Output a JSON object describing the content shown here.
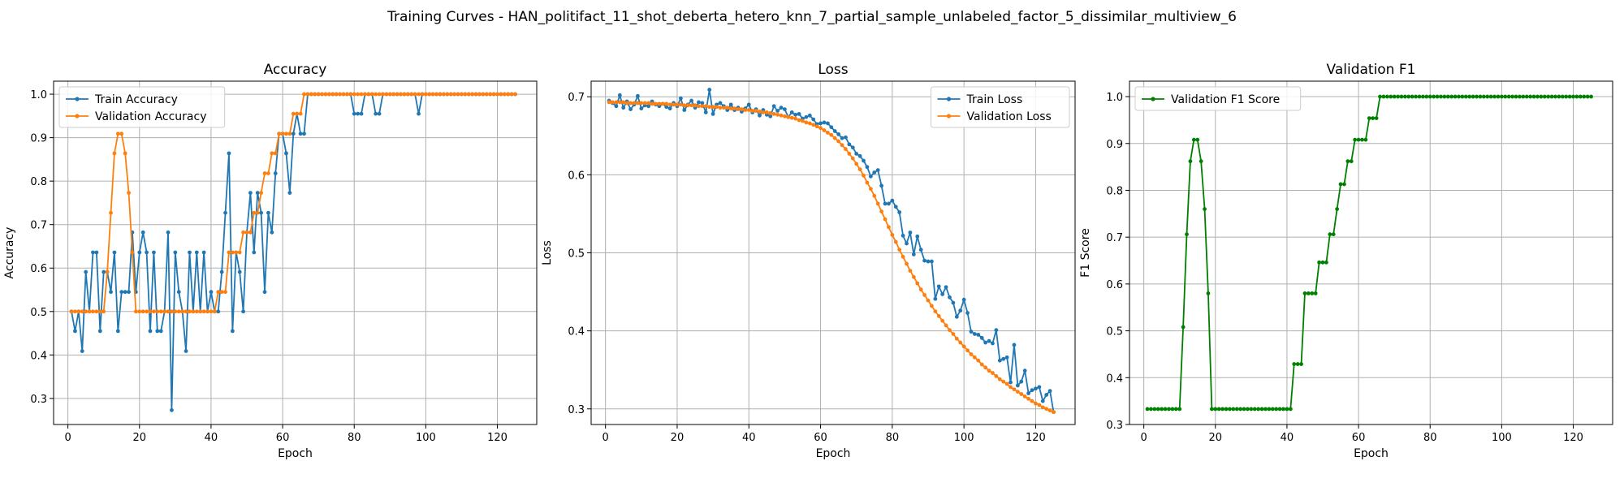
{
  "figure": {
    "suptitle": "Training Curves - HAN_politifact_11_shot_deberta_hetero_knn_7_partial_sample_unlabeled_factor_5_dissimilar_multiview_6"
  },
  "chart_data": [
    {
      "type": "line",
      "title": "Accuracy",
      "xlabel": "Epoch",
      "ylabel": "Accuracy",
      "xlim": [
        -4,
        131
      ],
      "ylim": [
        0.24,
        1.03
      ],
      "xticks": [
        0,
        20,
        40,
        60,
        80,
        100,
        120
      ],
      "yticks": [
        0.3,
        0.4,
        0.5,
        0.6,
        0.7,
        0.8,
        0.9,
        1.0
      ],
      "ytick_labels": [
        "0.3",
        "0.4",
        "0.5",
        "0.6",
        "0.7",
        "0.8",
        "0.9",
        "1.0"
      ],
      "grid": true,
      "legend": "upper-left",
      "series": [
        {
          "name": "Train Accuracy",
          "color": "#1f77b4",
          "x_start": 1,
          "values": [
            0.5,
            0.455,
            0.5,
            0.409,
            0.591,
            0.5,
            0.636,
            0.636,
            0.455,
            0.591,
            0.591,
            0.545,
            0.636,
            0.455,
            0.545,
            0.545,
            0.545,
            0.682,
            0.545,
            0.636,
            0.682,
            0.636,
            0.455,
            0.636,
            0.455,
            0.455,
            0.5,
            0.682,
            0.273,
            0.636,
            0.545,
            0.5,
            0.409,
            0.636,
            0.5,
            0.636,
            0.5,
            0.636,
            0.5,
            0.545,
            0.5,
            0.5,
            0.591,
            0.727,
            0.864,
            0.455,
            0.636,
            0.591,
            0.5,
            0.682,
            0.773,
            0.636,
            0.773,
            0.727,
            0.545,
            0.727,
            0.682,
            0.818,
            0.909,
            0.909,
            0.864,
            0.773,
            0.909,
            0.955,
            0.909,
            0.909,
            1.0,
            1.0,
            1.0,
            1.0,
            1.0,
            1.0,
            1.0,
            1.0,
            1.0,
            1.0,
            1.0,
            1.0,
            1.0,
            0.955,
            0.955,
            0.955,
            1.0,
            1.0,
            1.0,
            0.955,
            0.955,
            1.0,
            1.0,
            1.0,
            1.0,
            1.0,
            1.0,
            1.0,
            1.0,
            1.0,
            1.0,
            0.955,
            1.0,
            1.0,
            1.0,
            1.0,
            1.0,
            1.0,
            1.0,
            1.0,
            1.0,
            1.0,
            1.0,
            1.0,
            1.0,
            1.0,
            1.0,
            1.0,
            1.0,
            1.0,
            1.0,
            1.0,
            1.0,
            1.0,
            1.0,
            1.0,
            1.0,
            1.0,
            1.0
          ]
        },
        {
          "name": "Validation Accuracy",
          "color": "#ff7f0e",
          "x_start": 1,
          "values": [
            0.5,
            0.5,
            0.5,
            0.5,
            0.5,
            0.5,
            0.5,
            0.5,
            0.5,
            0.5,
            0.591,
            0.727,
            0.864,
            0.909,
            0.909,
            0.864,
            0.773,
            0.636,
            0.5,
            0.5,
            0.5,
            0.5,
            0.5,
            0.5,
            0.5,
            0.5,
            0.5,
            0.5,
            0.5,
            0.5,
            0.5,
            0.5,
            0.5,
            0.5,
            0.5,
            0.5,
            0.5,
            0.5,
            0.5,
            0.5,
            0.5,
            0.545,
            0.545,
            0.545,
            0.636,
            0.636,
            0.636,
            0.636,
            0.682,
            0.682,
            0.682,
            0.727,
            0.727,
            0.773,
            0.818,
            0.818,
            0.864,
            0.864,
            0.909,
            0.909,
            0.909,
            0.909,
            0.955,
            0.955,
            0.955,
            1.0,
            1.0,
            1.0,
            1.0,
            1.0,
            1.0,
            1.0,
            1.0,
            1.0,
            1.0,
            1.0,
            1.0,
            1.0,
            1.0,
            1.0,
            1.0,
            1.0,
            1.0,
            1.0,
            1.0,
            1.0,
            1.0,
            1.0,
            1.0,
            1.0,
            1.0,
            1.0,
            1.0,
            1.0,
            1.0,
            1.0,
            1.0,
            1.0,
            1.0,
            1.0,
            1.0,
            1.0,
            1.0,
            1.0,
            1.0,
            1.0,
            1.0,
            1.0,
            1.0,
            1.0,
            1.0,
            1.0,
            1.0,
            1.0,
            1.0,
            1.0,
            1.0,
            1.0,
            1.0,
            1.0,
            1.0,
            1.0,
            1.0,
            1.0,
            1.0
          ]
        }
      ]
    },
    {
      "type": "line",
      "title": "Loss",
      "xlabel": "Epoch",
      "ylabel": "Loss",
      "xlim": [
        -4,
        131
      ],
      "ylim": [
        0.28,
        0.72
      ],
      "xticks": [
        0,
        20,
        40,
        60,
        80,
        100,
        120
      ],
      "yticks": [
        0.3,
        0.4,
        0.5,
        0.6,
        0.7
      ],
      "ytick_labels": [
        "0.3",
        "0.4",
        "0.5",
        "0.6",
        "0.7"
      ],
      "grid": true,
      "legend": "upper-right",
      "series": [
        {
          "name": "Train Loss",
          "color": "#1f77b4",
          "x_start": 1,
          "values": [
            0.695,
            0.692,
            0.688,
            0.702,
            0.686,
            0.694,
            0.684,
            0.69,
            0.701,
            0.685,
            0.689,
            0.688,
            0.694,
            0.69,
            0.688,
            0.691,
            0.687,
            0.685,
            0.692,
            0.688,
            0.698,
            0.683,
            0.69,
            0.695,
            0.686,
            0.693,
            0.692,
            0.68,
            0.709,
            0.678,
            0.69,
            0.692,
            0.688,
            0.683,
            0.69,
            0.683,
            0.686,
            0.681,
            0.685,
            0.69,
            0.68,
            0.684,
            0.676,
            0.683,
            0.677,
            0.675,
            0.688,
            0.682,
            0.686,
            0.684,
            0.674,
            0.68,
            0.677,
            0.678,
            0.672,
            0.674,
            0.676,
            0.671,
            0.665,
            0.666,
            0.667,
            0.666,
            0.661,
            0.656,
            0.652,
            0.647,
            0.648,
            0.639,
            0.635,
            0.627,
            0.624,
            0.618,
            0.61,
            0.598,
            0.603,
            0.606,
            0.586,
            0.563,
            0.563,
            0.567,
            0.559,
            0.552,
            0.522,
            0.512,
            0.526,
            0.498,
            0.521,
            0.504,
            0.49,
            0.489,
            0.489,
            0.441,
            0.457,
            0.447,
            0.456,
            0.443,
            0.436,
            0.418,
            0.426,
            0.44,
            0.423,
            0.399,
            0.396,
            0.395,
            0.391,
            0.385,
            0.387,
            0.384,
            0.401,
            0.362,
            0.364,
            0.366,
            0.334,
            0.382,
            0.33,
            0.335,
            0.349,
            0.32,
            0.324,
            0.326,
            0.328,
            0.31,
            0.318,
            0.323,
            0.296
          ]
        },
        {
          "name": "Validation Loss",
          "color": "#ff7f0e",
          "x_start": 1,
          "values": [
            0.693,
            0.693,
            0.693,
            0.693,
            0.693,
            0.692,
            0.692,
            0.692,
            0.692,
            0.692,
            0.692,
            0.692,
            0.691,
            0.691,
            0.691,
            0.691,
            0.691,
            0.69,
            0.69,
            0.69,
            0.69,
            0.689,
            0.689,
            0.689,
            0.689,
            0.688,
            0.688,
            0.688,
            0.687,
            0.687,
            0.687,
            0.686,
            0.686,
            0.686,
            0.685,
            0.685,
            0.684,
            0.684,
            0.683,
            0.683,
            0.682,
            0.682,
            0.681,
            0.68,
            0.68,
            0.679,
            0.678,
            0.677,
            0.676,
            0.675,
            0.674,
            0.673,
            0.672,
            0.67,
            0.669,
            0.667,
            0.666,
            0.664,
            0.662,
            0.66,
            0.657,
            0.654,
            0.651,
            0.647,
            0.643,
            0.638,
            0.633,
            0.627,
            0.621,
            0.614,
            0.607,
            0.599,
            0.59,
            0.582,
            0.573,
            0.563,
            0.553,
            0.543,
            0.533,
            0.523,
            0.514,
            0.504,
            0.495,
            0.486,
            0.477,
            0.469,
            0.461,
            0.453,
            0.446,
            0.439,
            0.432,
            0.425,
            0.419,
            0.413,
            0.407,
            0.401,
            0.396,
            0.39,
            0.385,
            0.38,
            0.375,
            0.37,
            0.366,
            0.362,
            0.357,
            0.353,
            0.349,
            0.346,
            0.342,
            0.338,
            0.335,
            0.332,
            0.328,
            0.325,
            0.322,
            0.319,
            0.316,
            0.313,
            0.31,
            0.307,
            0.305,
            0.302,
            0.3,
            0.298,
            0.296
          ]
        }
      ]
    },
    {
      "type": "line",
      "title": "Validation F1",
      "xlabel": "Epoch",
      "ylabel": "F1 Score",
      "xlim": [
        -4,
        131
      ],
      "ylim": [
        0.3,
        1.033
      ],
      "xticks": [
        0,
        20,
        40,
        60,
        80,
        100,
        120
      ],
      "yticks": [
        0.3,
        0.4,
        0.5,
        0.6,
        0.7,
        0.8,
        0.9,
        1.0
      ],
      "ytick_labels": [
        "0.3",
        "0.4",
        "0.5",
        "0.6",
        "0.7",
        "0.8",
        "0.9",
        "1.0"
      ],
      "grid": true,
      "legend": "upper-left",
      "series": [
        {
          "name": "Validation F1 Score",
          "color": "#008000",
          "x_start": 1,
          "values": [
            0.333,
            0.333,
            0.333,
            0.333,
            0.333,
            0.333,
            0.333,
            0.333,
            0.333,
            0.333,
            0.508,
            0.706,
            0.862,
            0.908,
            0.908,
            0.862,
            0.76,
            0.58,
            0.333,
            0.333,
            0.333,
            0.333,
            0.333,
            0.333,
            0.333,
            0.333,
            0.333,
            0.333,
            0.333,
            0.333,
            0.333,
            0.333,
            0.333,
            0.333,
            0.333,
            0.333,
            0.333,
            0.333,
            0.333,
            0.333,
            0.333,
            0.429,
            0.429,
            0.429,
            0.58,
            0.58,
            0.58,
            0.58,
            0.646,
            0.646,
            0.646,
            0.706,
            0.706,
            0.76,
            0.813,
            0.813,
            0.862,
            0.862,
            0.908,
            0.908,
            0.908,
            0.908,
            0.954,
            0.954,
            0.954,
            1.0,
            1.0,
            1.0,
            1.0,
            1.0,
            1.0,
            1.0,
            1.0,
            1.0,
            1.0,
            1.0,
            1.0,
            1.0,
            1.0,
            1.0,
            1.0,
            1.0,
            1.0,
            1.0,
            1.0,
            1.0,
            1.0,
            1.0,
            1.0,
            1.0,
            1.0,
            1.0,
            1.0,
            1.0,
            1.0,
            1.0,
            1.0,
            1.0,
            1.0,
            1.0,
            1.0,
            1.0,
            1.0,
            1.0,
            1.0,
            1.0,
            1.0,
            1.0,
            1.0,
            1.0,
            1.0,
            1.0,
            1.0,
            1.0,
            1.0,
            1.0,
            1.0,
            1.0,
            1.0,
            1.0,
            1.0,
            1.0,
            1.0,
            1.0,
            1.0
          ]
        }
      ]
    }
  ]
}
